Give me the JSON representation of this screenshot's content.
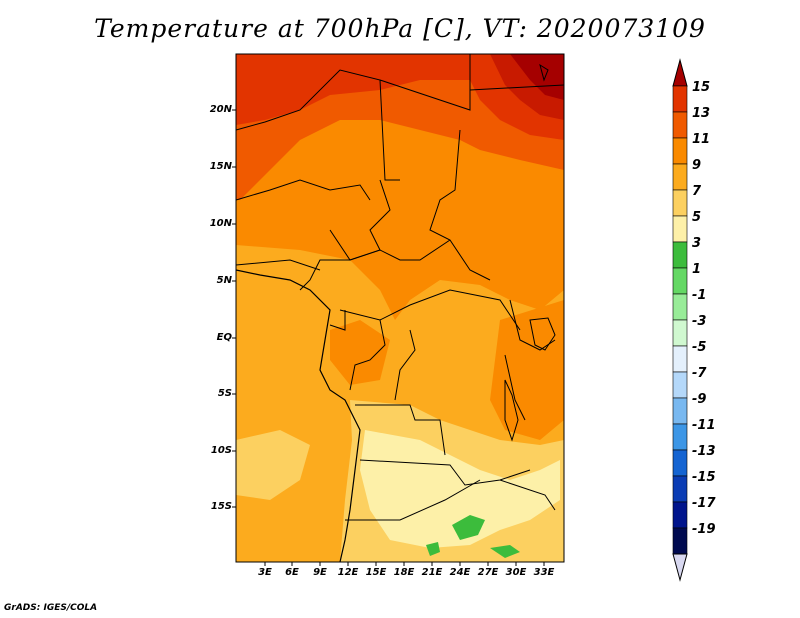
{
  "title": "Temperature at 700hPa [C], VT: 2020073109",
  "credit": "GrADS: IGES/COLA",
  "latitude_labels": [
    "20N",
    "15N",
    "10N",
    "5N",
    "EQ",
    "5S",
    "10S",
    "15S"
  ],
  "longitude_labels": [
    "3E",
    "6E",
    "9E",
    "12E",
    "15E",
    "18E",
    "21E",
    "24E",
    "27E",
    "30E",
    "33E"
  ],
  "colorbar": {
    "labels": [
      "15",
      "13",
      "11",
      "9",
      "7",
      "5",
      "3",
      "1",
      "-1",
      "-3",
      "-5",
      "-7",
      "-9",
      "-11",
      "-13",
      "-15",
      "-17",
      "-19"
    ],
    "colors": [
      "#a50000",
      "#e23400",
      "#f05a00",
      "#fa8a00",
      "#fcab1e",
      "#fcd060",
      "#fdf0a8",
      "#3cbc3c",
      "#64d864",
      "#98ec98",
      "#d0f8d0",
      "#e4f0fc",
      "#b4d8fa",
      "#78b8f0",
      "#3c96e6",
      "#1464d2",
      "#0a3cb4",
      "#00148c",
      "#000a50",
      "#d8d8f0"
    ],
    "color_names": [
      "dark-red",
      "red-orange",
      "orange-red",
      "orange",
      "light-orange",
      "yellow-orange",
      "pale-yellow",
      "green",
      "light-green",
      "pale-green",
      "very-pale-green",
      "very-pale-blue",
      "pale-blue",
      "light-blue",
      "blue",
      "medium-blue",
      "dark-blue",
      "navy",
      "very-dark-navy",
      "lavender"
    ]
  }
}
